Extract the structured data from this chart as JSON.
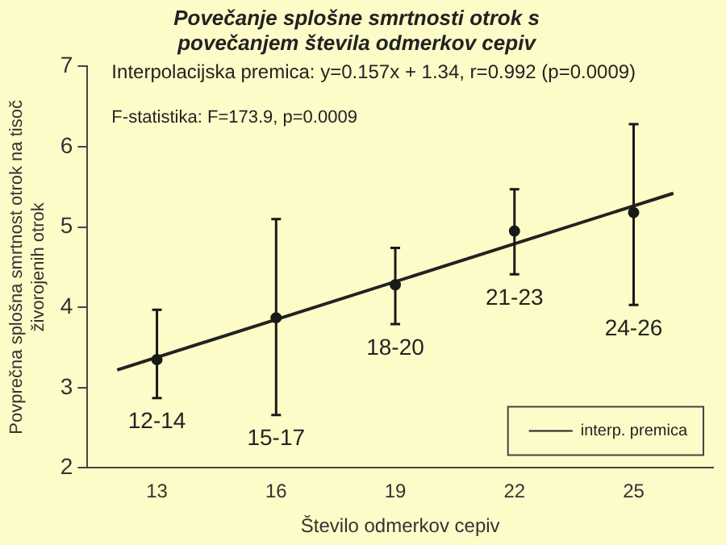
{
  "chart_data": {
    "type": "scatter",
    "title": "Povečanje splošne smrtnosti otrok s povečanjem števila odmerkov cepiv",
    "xlabel": "Število odmerkov cepiv",
    "ylabel": "Povprečna splošna smrtnost otrok na tisoč živorojenih otrok",
    "series": [
      {
        "marker": "circle",
        "color": "#1a1a1a",
        "x": [
          13,
          16,
          19,
          22,
          25
        ],
        "values": [
          3.35,
          3.87,
          4.28,
          4.95,
          5.18
        ],
        "errors": [
          [
            2.87,
            3.97
          ],
          [
            2.66,
            5.1
          ],
          [
            3.79,
            4.74
          ],
          [
            4.41,
            5.47
          ],
          [
            4.03,
            6.28
          ]
        ]
      },
      {
        "type": "line",
        "marker": "none",
        "name": "interp. premica",
        "color": "#222222",
        "x": [
          12,
          26
        ],
        "values": [
          3.22,
          5.42
        ]
      }
    ],
    "annotations": [
      "Interpolacijska premica: y=0.157x + 1.34, r=0.992 (p=0.0009)",
      "F-statistika: F=173.9, p=0.0009",
      "12-14",
      "15-17",
      "18-20",
      "21-23",
      "24-26"
    ],
    "xlim": [
      11.25,
      27
    ],
    "xticks": [
      13,
      16,
      19,
      22,
      25
    ],
    "ylim": [
      2,
      7
    ],
    "yticks": [
      2,
      3,
      4,
      5,
      6,
      7
    ],
    "grid": false,
    "legend": "bottom right",
    "line_style": "solid"
  }
}
